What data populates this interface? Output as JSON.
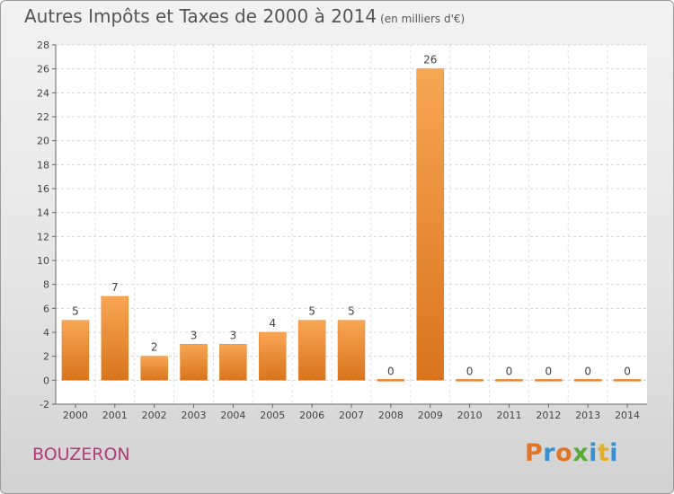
{
  "title": "Autres Impôts et Taxes de 2000 à 2014",
  "subtitle": "(en milliers d'€)",
  "commune": "BOUZERON",
  "logo": {
    "letters": [
      "P",
      "r",
      "o",
      "x",
      "i",
      "t",
      "i"
    ],
    "colors": [
      "#e0762a",
      "#3a8fd0",
      "#e0762a",
      "#5aaa3a",
      "#3a8fd0",
      "#e0b02a",
      "#3a8fd0"
    ]
  },
  "chart_data": {
    "type": "bar",
    "categories": [
      "2000",
      "2001",
      "2002",
      "2003",
      "2004",
      "2005",
      "2006",
      "2007",
      "2008",
      "2009",
      "2010",
      "2011",
      "2012",
      "2013",
      "2014"
    ],
    "values": [
      5,
      7,
      2,
      3,
      3,
      4,
      5,
      5,
      0,
      26,
      0,
      0,
      0,
      0,
      0
    ],
    "data_labels": [
      "5",
      "7",
      "2",
      "3",
      "3",
      "4",
      "5",
      "5",
      "0",
      "26",
      "0",
      "0",
      "0",
      "0",
      "0"
    ],
    "title": "Autres Impôts et Taxes de 2000 à 2014",
    "ylim": [
      -2,
      28
    ],
    "yticks": [
      -2,
      0,
      2,
      4,
      6,
      8,
      10,
      12,
      14,
      16,
      18,
      20,
      22,
      24,
      26,
      28
    ],
    "grid": true,
    "bar_color": "#f0963c"
  }
}
